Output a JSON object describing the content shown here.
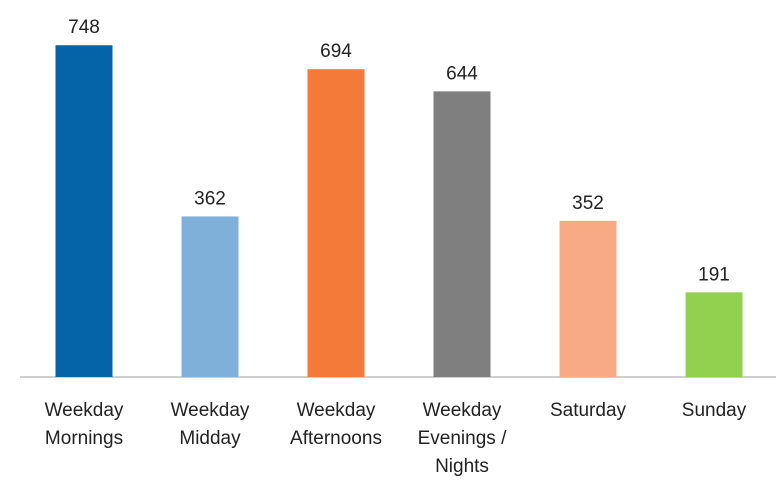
{
  "chart_data": {
    "type": "bar",
    "categories": [
      "Weekday Mornings",
      "Weekday Midday",
      "Weekday Afternoons",
      "Weekday Evenings / Nights",
      "Saturday",
      "Sunday"
    ],
    "values": [
      748,
      362,
      694,
      644,
      352,
      191
    ],
    "colors": [
      "#0563a8",
      "#7fb0d9",
      "#f47a3a",
      "#7f7f7f",
      "#f7aa84",
      "#92d050"
    ],
    "ylim": [
      0,
      850
    ]
  }
}
